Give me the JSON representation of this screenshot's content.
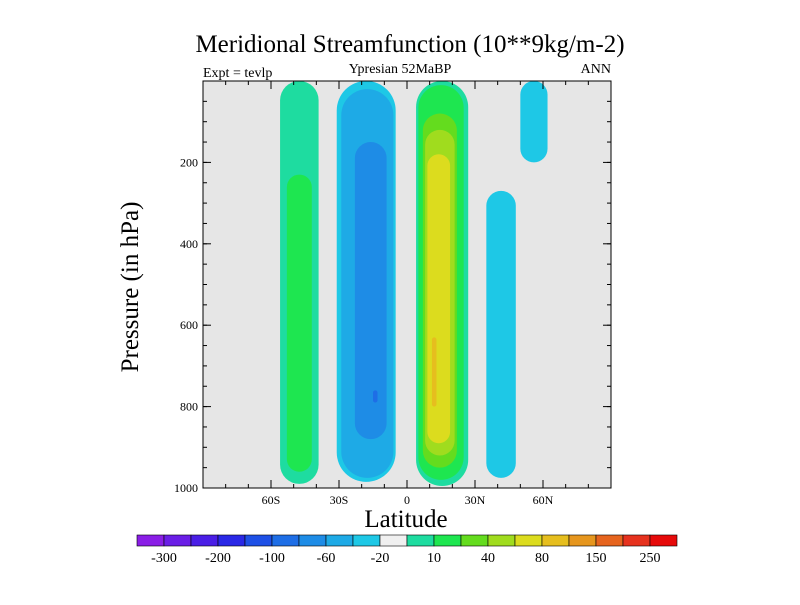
{
  "chart_data": {
    "type": "heatmap",
    "title": "Meridional Streamfunction (10**9kg/m-2)",
    "subtitle": "Ypresian  52MaBP",
    "left_label": "Expt = tevlp",
    "right_label": "ANN",
    "xlabel": "Latitude",
    "ylabel": "Pressure (in hPa)",
    "xlim": [
      -90,
      90
    ],
    "ylim": [
      1000,
      0
    ],
    "x_ticks": [
      {
        "value": -60,
        "label": "60S"
      },
      {
        "value": -30,
        "label": "30S"
      },
      {
        "value": 0,
        "label": "0"
      },
      {
        "value": 30,
        "label": "30N"
      },
      {
        "value": 60,
        "label": "60N"
      }
    ],
    "y_ticks": [
      {
        "value": 200,
        "label": "200"
      },
      {
        "value": 400,
        "label": "400"
      },
      {
        "value": 600,
        "label": "600"
      },
      {
        "value": 800,
        "label": "800"
      },
      {
        "value": 1000,
        "label": "1000"
      }
    ],
    "background_color": "#e6e6e6",
    "colorbar": {
      "colors": [
        "#8a1ee6",
        "#6a1ee6",
        "#4a1ee6",
        "#2a28e6",
        "#1e50e6",
        "#1e6ee6",
        "#1e8ce6",
        "#1eaae6",
        "#1ec8e6",
        "#f0f0f0",
        "#1edca0",
        "#1ee650",
        "#64dc1e",
        "#a0dc1e",
        "#dcdc1e",
        "#e6be1e",
        "#e6961e",
        "#e6641e",
        "#e6321e",
        "#e60a0a"
      ],
      "labels": [
        {
          "boundary": 1,
          "text": "-300"
        },
        {
          "boundary": 3,
          "text": "-200"
        },
        {
          "boundary": 5,
          "text": "-100"
        },
        {
          "boundary": 7,
          "text": "-60"
        },
        {
          "boundary": 9,
          "text": "-20"
        },
        {
          "boundary": 11,
          "text": "10"
        },
        {
          "boundary": 13,
          "text": "40"
        },
        {
          "boundary": 15,
          "text": "80"
        },
        {
          "boundary": 17,
          "text": "150"
        },
        {
          "boundary": 19,
          "text": "250"
        }
      ]
    },
    "cells": [
      {
        "name": "cell-sh-outer-green",
        "lat": [
          -56,
          -39
        ],
        "p": [
          0,
          990
        ],
        "level": 10,
        "color": "#1edca0"
      },
      {
        "name": "cell-sh-outer-core",
        "lat": [
          -53,
          -42
        ],
        "p": [
          230,
          960
        ],
        "level": 40,
        "color": "#1ee650"
      },
      {
        "name": "cell-sh-blue",
        "lat": [
          -31,
          -5
        ],
        "p": [
          0,
          985
        ],
        "level": -20,
        "color": "#1ec8e6"
      },
      {
        "name": "cell-sh-blue-mid",
        "lat": [
          -29,
          -6
        ],
        "p": [
          20,
          975
        ],
        "level": -40,
        "color": "#1eaae6"
      },
      {
        "name": "cell-sh-blue-core",
        "lat": [
          -23,
          -9
        ],
        "p": [
          150,
          880
        ],
        "level": -60,
        "color": "#1e8ce6"
      },
      {
        "name": "cell-sh-blue-min",
        "lat": [
          -15,
          -13
        ],
        "p": [
          760,
          790
        ],
        "level": -100,
        "color": "#1e6ee6"
      },
      {
        "name": "cell-nh-green",
        "lat": [
          4,
          27
        ],
        "p": [
          0,
          995
        ],
        "level": 10,
        "color": "#1edca0"
      },
      {
        "name": "cell-nh-green-mid",
        "lat": [
          5,
          25
        ],
        "p": [
          10,
          980
        ],
        "level": 40,
        "color": "#1ee650"
      },
      {
        "name": "cell-nh-lime",
        "lat": [
          7,
          22
        ],
        "p": [
          80,
          950
        ],
        "level": 60,
        "color": "#64dc1e"
      },
      {
        "name": "cell-nh-yellowgreen",
        "lat": [
          8,
          21
        ],
        "p": [
          120,
          920
        ],
        "level": 80,
        "color": "#a0dc1e"
      },
      {
        "name": "cell-nh-yellow",
        "lat": [
          9,
          19
        ],
        "p": [
          180,
          890
        ],
        "level": 100,
        "color": "#dcdc1e"
      },
      {
        "name": "cell-nh-max",
        "lat": [
          11,
          13
        ],
        "p": [
          630,
          800
        ],
        "level": 150,
        "color": "#e6be1e"
      },
      {
        "name": "cell-nh-outer-blue",
        "lat": [
          35,
          48
        ],
        "p": [
          270,
          975
        ],
        "level": -20,
        "color": "#1ec8e6"
      },
      {
        "name": "cell-nh-polar-blue",
        "lat": [
          50,
          62
        ],
        "p": [
          0,
          200
        ],
        "level": -20,
        "color": "#1ec8e6"
      }
    ]
  }
}
